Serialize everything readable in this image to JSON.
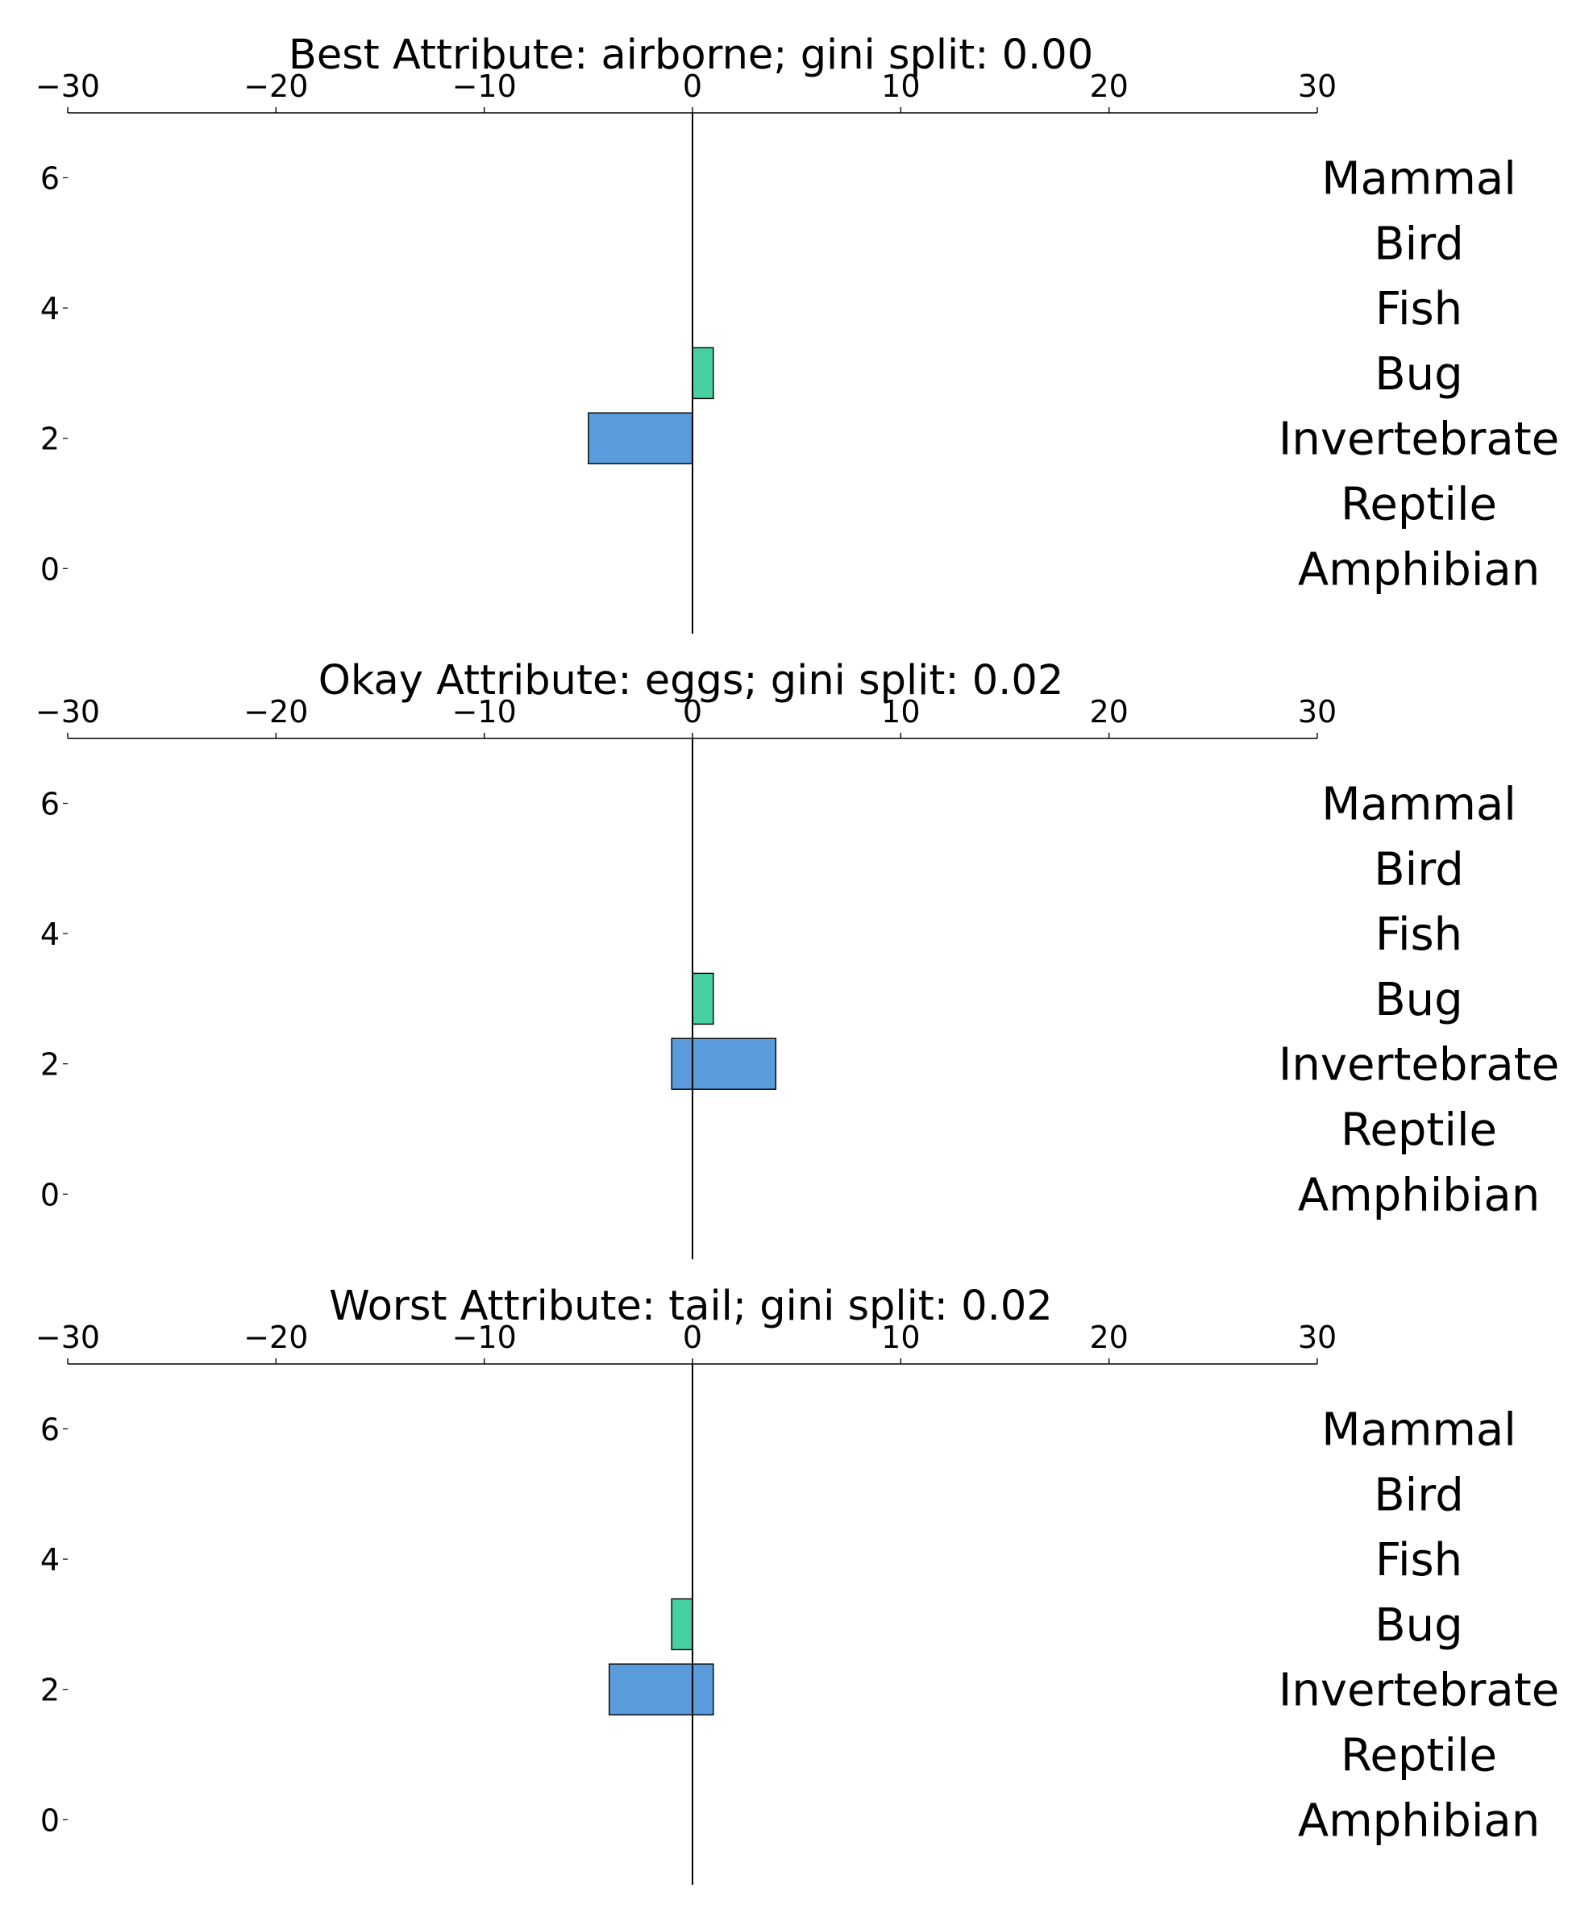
{
  "chart_data": [
    {
      "type": "bar",
      "orientation": "horizontal",
      "title": "Best Attribute: airborne; gini split: 0.00",
      "xlim": [
        -30,
        30
      ],
      "xticks": [
        -30,
        -20,
        -10,
        0,
        10,
        20,
        30
      ],
      "xtick_labels": [
        "−30",
        "−20",
        "−10",
        "0",
        "10",
        "20",
        "30"
      ],
      "ylim": [
        -1,
        7
      ],
      "yticks": [
        0,
        2,
        4,
        6
      ],
      "ytick_labels": [
        "0",
        "2",
        "4",
        "6"
      ],
      "categories": [
        "Amphibian",
        "Reptile",
        "Invertebrate",
        "Bug",
        "Fish",
        "Bird",
        "Mammal"
      ],
      "bars": [
        {
          "category": "Bug",
          "y": 3,
          "left": 0,
          "right": 1,
          "color": "#48d1a0"
        },
        {
          "category": "Invertebrate",
          "y": 2,
          "left": -5,
          "right": 0,
          "color": "#5a9bdb"
        }
      ]
    },
    {
      "type": "bar",
      "orientation": "horizontal",
      "title": "Okay Attribute: eggs; gini split: 0.02",
      "xlim": [
        -30,
        30
      ],
      "xticks": [
        -30,
        -20,
        -10,
        0,
        10,
        20,
        30
      ],
      "xtick_labels": [
        "−30",
        "−20",
        "−10",
        "0",
        "10",
        "20",
        "30"
      ],
      "ylim": [
        -1,
        7
      ],
      "yticks": [
        0,
        2,
        4,
        6
      ],
      "ytick_labels": [
        "0",
        "2",
        "4",
        "6"
      ],
      "categories": [
        "Amphibian",
        "Reptile",
        "Invertebrate",
        "Bug",
        "Fish",
        "Bird",
        "Mammal"
      ],
      "bars": [
        {
          "category": "Bug",
          "y": 3,
          "left": 0,
          "right": 1,
          "color": "#48d1a0"
        },
        {
          "category": "Invertebrate",
          "y": 2,
          "left": -1,
          "right": 4,
          "color": "#5a9bdb"
        }
      ]
    },
    {
      "type": "bar",
      "orientation": "horizontal",
      "title": "Worst Attribute: tail; gini split: 0.02",
      "xlim": [
        -30,
        30
      ],
      "xticks": [
        -30,
        -20,
        -10,
        0,
        10,
        20,
        30
      ],
      "xtick_labels": [
        "−30",
        "−20",
        "−10",
        "0",
        "10",
        "20",
        "30"
      ],
      "ylim": [
        -1,
        7
      ],
      "yticks": [
        0,
        2,
        4,
        6
      ],
      "ytick_labels": [
        "0",
        "2",
        "4",
        "6"
      ],
      "categories": [
        "Amphibian",
        "Reptile",
        "Invertebrate",
        "Bug",
        "Fish",
        "Bird",
        "Mammal"
      ],
      "bars": [
        {
          "category": "Bug",
          "y": 3,
          "left": -1,
          "right": 0,
          "color": "#48d1a0"
        },
        {
          "category": "Invertebrate",
          "y": 2,
          "left": -4,
          "right": 1,
          "color": "#5a9bdb"
        }
      ]
    }
  ]
}
